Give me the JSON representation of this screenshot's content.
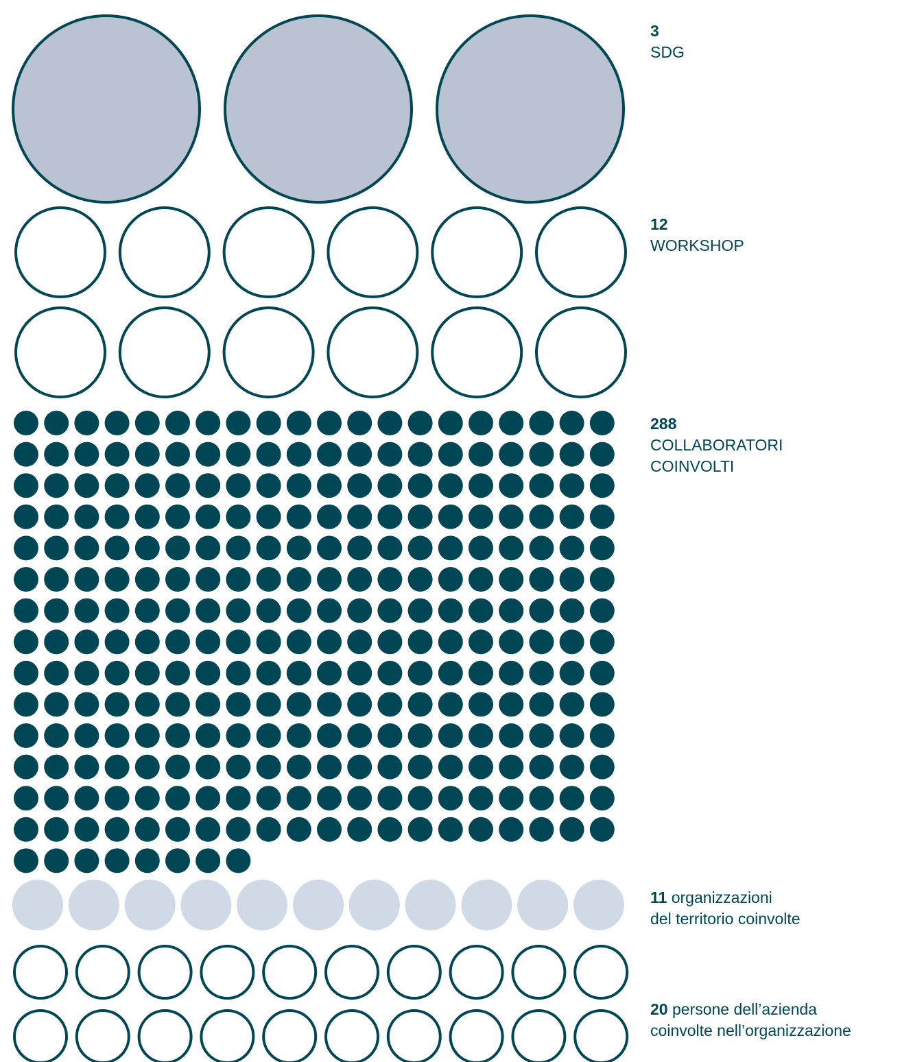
{
  "colors": {
    "dark": "#004655",
    "light_fill": "#b9c3d1",
    "pale": "#cfdae6",
    "white": "#ffffff"
  },
  "chart_data": {
    "type": "unit-chart",
    "groups": [
      {
        "value": 3,
        "number": "3",
        "label": "SDG",
        "style": "outlined-filled"
      },
      {
        "value": 12,
        "number": "12",
        "label": "WORKSHOP",
        "style": "outlined"
      },
      {
        "value": 288,
        "number": "288",
        "label_line1": "COLLABORATORI",
        "label_line2": "COINVOLTI",
        "style": "solid-dark"
      },
      {
        "value": 11,
        "number": "11",
        "label_line1": "organizzazioni",
        "label_line2": "del territorio coinvolte",
        "style": "solid-pale"
      },
      {
        "value": 20,
        "number": "20",
        "label_line1": "persone dell’azienda",
        "label_line2": "coinvolte nell’organizzazione",
        "style": "outlined"
      }
    ]
  }
}
